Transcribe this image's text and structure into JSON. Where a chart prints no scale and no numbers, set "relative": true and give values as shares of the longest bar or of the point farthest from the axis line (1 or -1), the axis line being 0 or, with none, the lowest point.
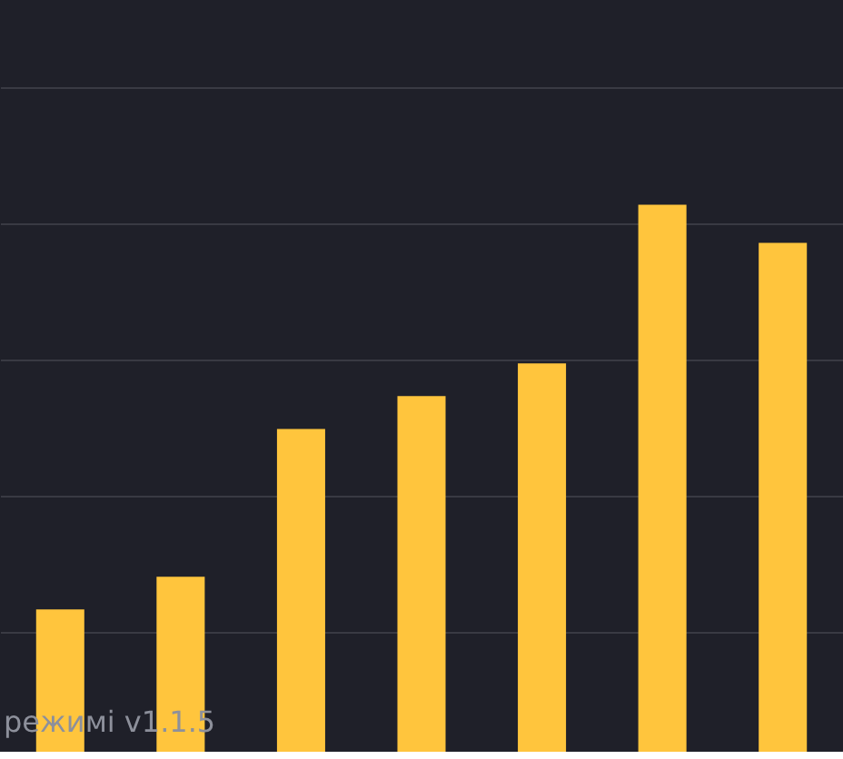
{
  "chart_data": {
    "type": "bar",
    "categories": [
      null,
      null,
      null,
      null,
      null,
      null,
      null
    ],
    "values": [
      0.26,
      0.32,
      0.59,
      0.65,
      0.71,
      1,
      0.93
    ],
    "relative": true,
    "color": "#ffc53d",
    "grid": "y",
    "annotations": [
      "режимі v1.1.5"
    ]
  }
}
